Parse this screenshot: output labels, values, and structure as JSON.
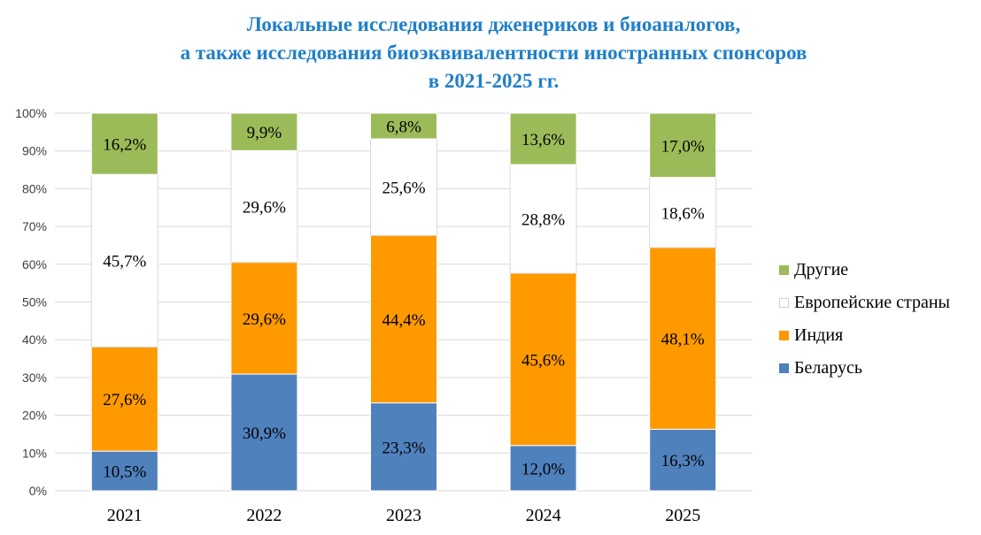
{
  "chart_data": {
    "type": "bar",
    "stacked": true,
    "percent": true,
    "title": [
      "Локальные исследования дженериков и биоаналогов,",
      "а также исследования биоэквивалентности иностранных спонсоров",
      "в 2021-2025 гг."
    ],
    "categories": [
      "2021",
      "2022",
      "2023",
      "2024",
      "2025"
    ],
    "ylim": [
      0,
      100
    ],
    "yticks": [
      "0%",
      "10%",
      "20%",
      "30%",
      "40%",
      "50%",
      "60%",
      "70%",
      "80%",
      "90%",
      "100%"
    ],
    "grid": true,
    "legend_position": "right",
    "series": [
      {
        "name": "Беларусь",
        "color": "#4F81BD",
        "values": [
          10.5,
          30.9,
          23.3,
          12.0,
          16.3
        ],
        "labels": [
          "10,5%",
          "30,9%",
          "23,3%",
          "12,0%",
          "16,3%"
        ]
      },
      {
        "name": "Индия",
        "color": "#FF9900",
        "values": [
          27.6,
          29.6,
          44.4,
          45.6,
          48.1
        ],
        "labels": [
          "27,6%",
          "29,6%",
          "44,4%",
          "45,6%",
          "48,1%"
        ]
      },
      {
        "name": "Европейские страны",
        "color": "#FFFFFF",
        "values": [
          45.7,
          29.6,
          25.6,
          28.8,
          18.6
        ],
        "labels": [
          "45,7%",
          "29,6%",
          "25,6%",
          "28,8%",
          "18,6%"
        ]
      },
      {
        "name": "Другие",
        "color": "#9BBB59",
        "values": [
          16.2,
          9.9,
          6.8,
          13.6,
          17.0
        ],
        "labels": [
          "16,2%",
          "9,9%",
          "6,8%",
          "13,6%",
          "17,0%"
        ]
      }
    ]
  }
}
